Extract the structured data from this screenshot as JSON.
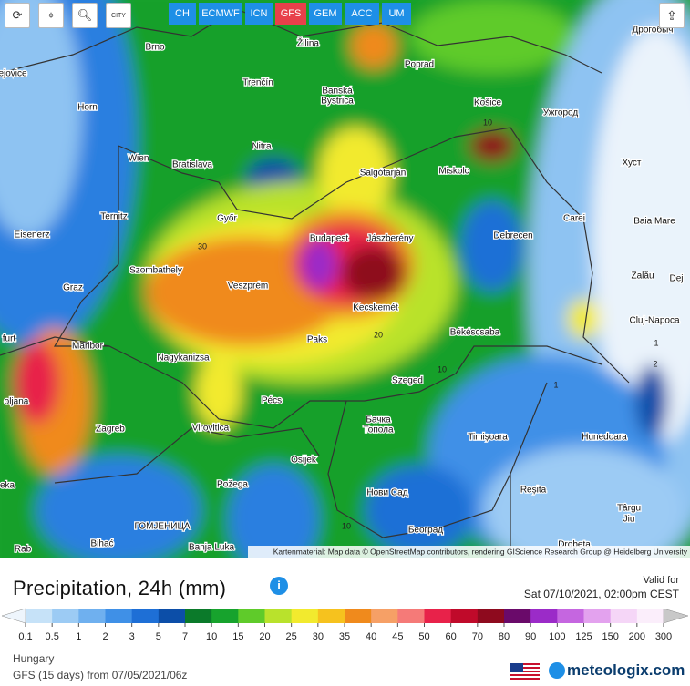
{
  "toolbar": {
    "city_button": "CITY",
    "models": [
      "CH",
      "ECMWF",
      "ICN",
      "GFS",
      "GEM",
      "ACC",
      "UM"
    ],
    "active_model": "GFS"
  },
  "map": {
    "cities": [
      "Brno",
      "Žilina",
      "Poprad",
      "Trenčín",
      "Banská",
      "Bystrica",
      "Horn",
      "Košice",
      "Ужгород",
      "Дрогобыч",
      "Nitra",
      "Wien",
      "Bratislava",
      "Salgótarján",
      "Miskolc",
      "Хуст",
      "Ternitz",
      "Győr",
      "Carei",
      "Baia Mare",
      "Eisenerz",
      "Budapest",
      "Jászberény",
      "Debrecen",
      "Szombathely",
      "Veszprém",
      "Zalău",
      "Graz",
      "Kecskemét",
      "Cluj-Napoca",
      "Paks",
      "Békéscsaba",
      "Maribor",
      "Nagykanizsa",
      "Szeged",
      "Pécs",
      "Бачка",
      "Топола",
      "Virovitica",
      "Zagreb",
      "Timișoara",
      "Hunedoara",
      "Osijek",
      "Požega",
      "Нови Сад",
      "Reșita",
      "Târgu",
      "Jiu",
      "ГОМЈЕНИЦА",
      "Београд",
      "Bihać",
      "Banja Luka",
      "Rab",
      "Drobeta",
      "Dej",
      "furt",
      "oljana",
      "ejovice",
      "eka"
    ],
    "contour_labels": [
      "30",
      "20",
      "10",
      "10",
      "10",
      "1",
      "2",
      "1"
    ],
    "attribution": "Kartenmaterial: Map data © OpenStreetMap contributors, rendering GIScience Research Group @ Heidelberg University"
  },
  "legend": {
    "title": "Precipitation, 24h (mm)",
    "valid_label": "Valid for",
    "valid_time": "Sat 07/10/2021, 02:00pm CEST",
    "ticks": [
      0.1,
      0.5,
      1,
      2,
      3,
      5,
      7,
      10,
      15,
      20,
      25,
      30,
      35,
      40,
      45,
      50,
      60,
      70,
      80,
      90,
      100,
      125,
      150,
      200,
      300
    ],
    "colors": [
      "#eef5fc",
      "#c6e2f8",
      "#9ccbf4",
      "#6fb0ef",
      "#3f90e7",
      "#1e6fd6",
      "#0c4ea8",
      "#0b7a2a",
      "#17a32d",
      "#5fcb2a",
      "#b9e22c",
      "#f2ea2e",
      "#f6c21e",
      "#f08a1c",
      "#f6a066",
      "#f57a78",
      "#e8224a",
      "#c00a2a",
      "#8e0a1e",
      "#6a0a6a",
      "#9b2bc8",
      "#c566e0",
      "#e3a2ee",
      "#f5d6f7",
      "#fbeefb",
      "#c8c8c8"
    ]
  },
  "footer": {
    "region": "Hungary",
    "run": "GFS (15 days) from 07/05/2021/06z",
    "brand": "meteologix.com"
  }
}
